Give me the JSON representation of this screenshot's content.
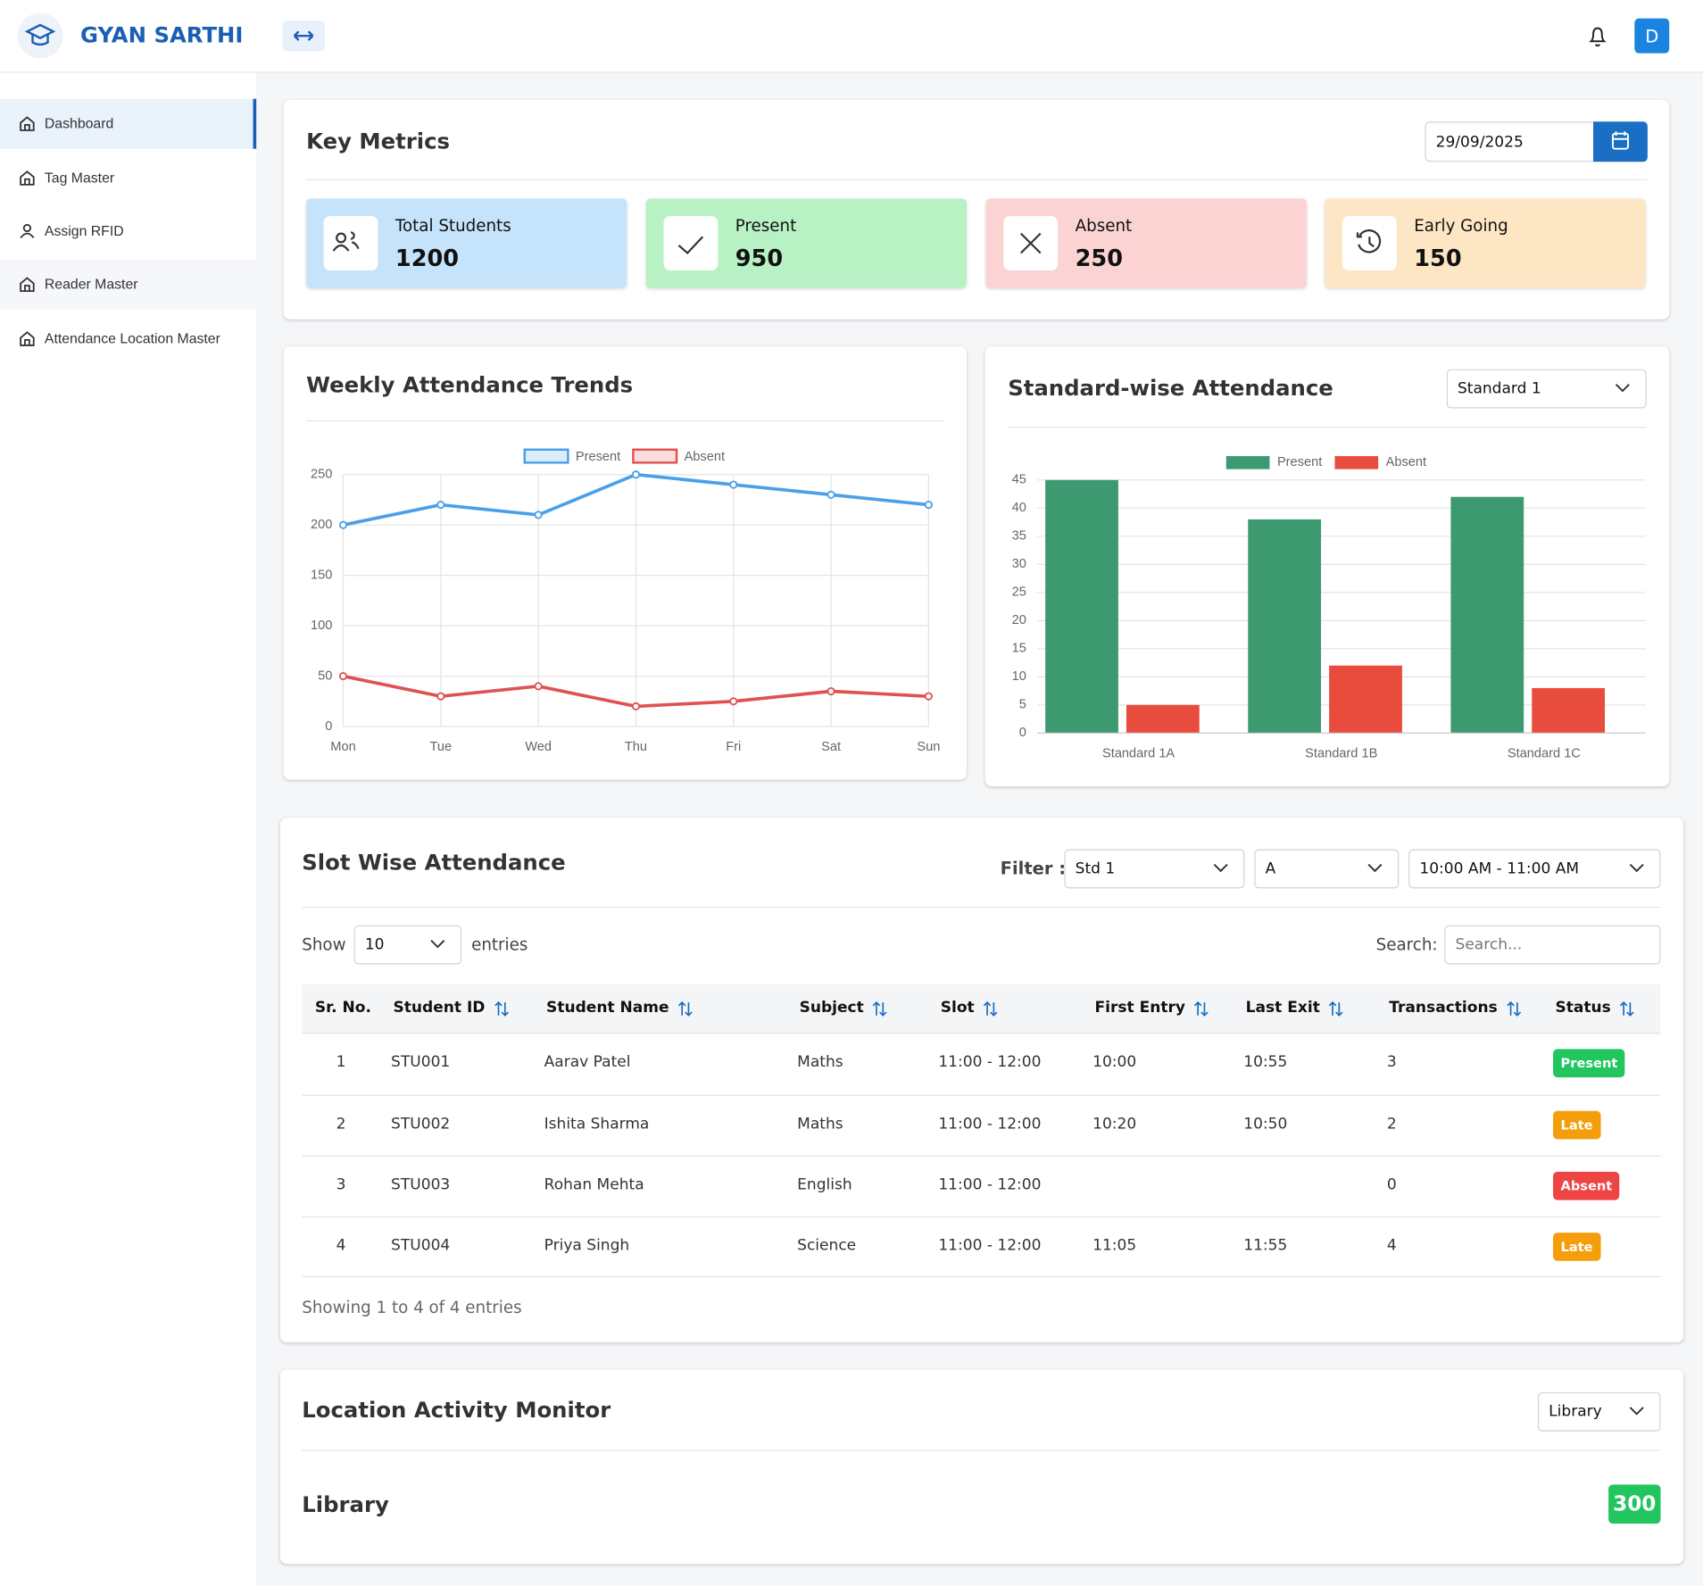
{
  "header": {
    "brand": "GYAN SARTHI",
    "avatar": "D"
  },
  "sidebar": {
    "items": [
      "Dashboard",
      "Tag Master",
      "Assign RFID",
      "Reader Master",
      "Attendance Location Master"
    ]
  },
  "key_metrics": {
    "title": "Key Metrics",
    "date": "29/09/2025",
    "cards": [
      {
        "label": "Total Students",
        "value": 1200,
        "color": "#c5e4fb"
      },
      {
        "label": "Present",
        "value": 950,
        "color": "#b8f2c4"
      },
      {
        "label": "Absent",
        "value": 250,
        "color": "#fbd3d3"
      },
      {
        "label": "Early Going",
        "value": 150,
        "color": "#fde6c4"
      }
    ]
  },
  "weekly_chart": {
    "type": "line",
    "title": "Weekly Attendance Trends",
    "categories": [
      "Mon",
      "Tue",
      "Wed",
      "Thu",
      "Fri",
      "Sat",
      "Sun"
    ],
    "series": [
      {
        "name": "Present",
        "color": "#4a9fe8",
        "values": [
          200,
          220,
          210,
          250,
          240,
          230,
          220
        ]
      },
      {
        "name": "Absent",
        "color": "#e05252",
        "values": [
          50,
          30,
          40,
          20,
          25,
          35,
          30
        ]
      }
    ],
    "ylim": [
      0,
      250
    ],
    "yticks": [
      0,
      50,
      100,
      150,
      200,
      250
    ],
    "grid": true
  },
  "standard_chart": {
    "type": "bar",
    "title": "Standard-wise Attendance",
    "selector": "Standard 1",
    "categories": [
      "Standard 1A",
      "Standard 1B",
      "Standard 1C"
    ],
    "series": [
      {
        "name": "Present",
        "color": "#3d9970",
        "values": [
          45,
          38,
          42
        ]
      },
      {
        "name": "Absent",
        "color": "#e74c3c",
        "values": [
          5,
          12,
          8
        ]
      }
    ],
    "ylim": [
      0,
      45
    ],
    "yticks": [
      0,
      5,
      10,
      15,
      20,
      25,
      30,
      35,
      40,
      45
    ],
    "grid": true
  },
  "slot_attendance": {
    "title": "Slot Wise Attendance",
    "filter_label": "Filter :",
    "filters": [
      "Std 1",
      "A",
      "10:00 AM - 11:00 AM"
    ],
    "show_label": "Show",
    "page_size": "10",
    "entries_label": "entries",
    "search_label": "Search:",
    "search_placeholder": "Search...",
    "columns": [
      "Sr. No.",
      "Student ID",
      "Student Name",
      "Subject",
      "Slot",
      "First Entry",
      "Last Exit",
      "Transactions",
      "Status"
    ],
    "rows": [
      [
        "1",
        "STU001",
        "Aarav Patel",
        "Maths",
        "11:00 - 12:00",
        "10:00",
        "10:55",
        "3",
        "Present"
      ],
      [
        "2",
        "STU002",
        "Ishita Sharma",
        "Maths",
        "11:00 - 12:00",
        "10:20",
        "10:50",
        "2",
        "Late"
      ],
      [
        "3",
        "STU003",
        "Rohan Mehta",
        "English",
        "11:00 - 12:00",
        null,
        null,
        "0",
        "Absent"
      ],
      [
        "4",
        "STU004",
        "Priya Singh",
        "Science",
        "11:00 - 12:00",
        "11:05",
        "11:55",
        "4",
        "Late"
      ]
    ],
    "status_colors": [
      "#22c55e",
      "#f59e0b",
      "#ef4444",
      "#f59e0b"
    ],
    "footer": "Showing 1 to 4 of 4 entries"
  },
  "location_monitor": {
    "title": "Location Activity Monitor",
    "selector": "Library",
    "location": "Library",
    "count": 300
  }
}
